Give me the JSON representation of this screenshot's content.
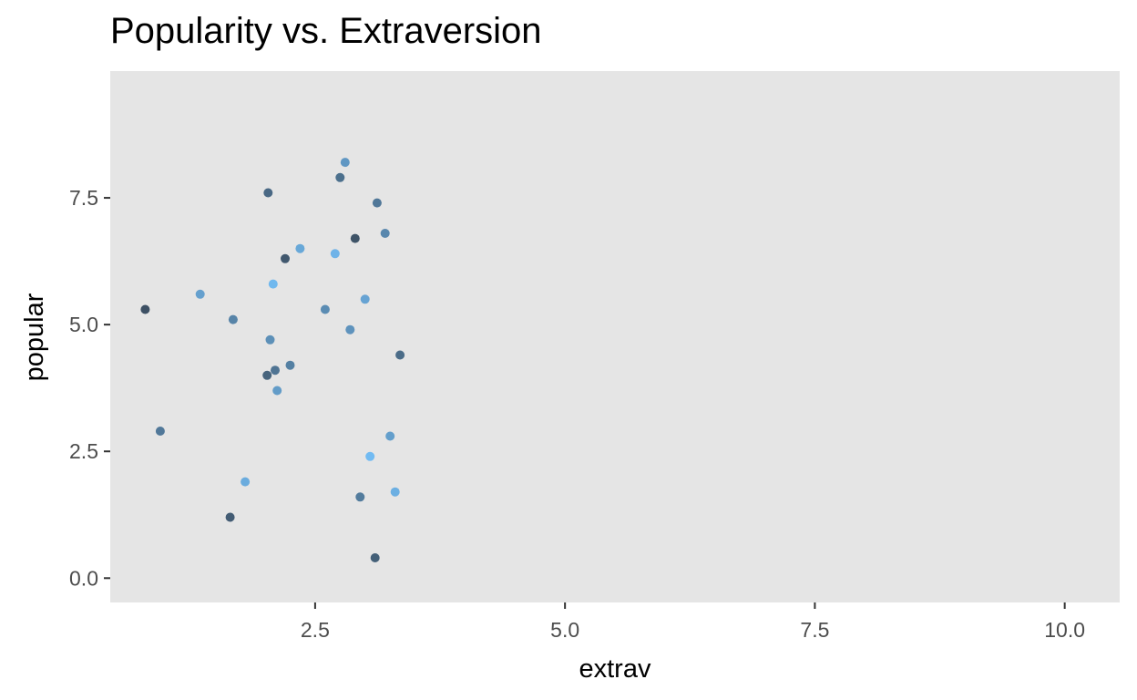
{
  "chart_data": {
    "type": "scatter",
    "title": "Popularity vs. Extraversion",
    "xlabel": "extrav",
    "ylabel": "popular",
    "xlim": [
      0.45,
      10.55
    ],
    "ylim": [
      -0.48,
      10.0
    ],
    "xticks": [
      2.5,
      5.0,
      7.5,
      10.0
    ],
    "xtick_labels": [
      "2.5",
      "5.0",
      "7.5",
      "10.0"
    ],
    "yticks": [
      0.0,
      2.5,
      5.0,
      7.5
    ],
    "ytick_labels": [
      "0.0",
      "2.5",
      "5.0",
      "7.5"
    ],
    "grid": false,
    "legend": "none",
    "colors": {
      "panel_background": "#e5e5e5",
      "point_dark": "#132b43",
      "point_light": "#56b1f7",
      "tick_mark": "#333333",
      "tick_label": "#4d4d4d"
    },
    "series": [
      {
        "x": [
          0.8,
          0.95,
          1.35,
          1.65,
          1.68,
          1.8,
          2.03,
          2.05,
          2.08,
          2.1,
          2.12,
          2.2,
          2.25,
          2.35,
          2.02,
          2.6,
          2.7,
          2.75,
          2.8,
          2.9,
          2.95,
          3.0,
          3.1,
          3.2,
          3.3,
          3.35,
          2.85,
          3.05,
          3.12,
          3.25
        ],
        "y": [
          5.3,
          2.9,
          5.6,
          1.2,
          5.1,
          1.9,
          7.6,
          4.7,
          5.8,
          4.1,
          3.7,
          6.3,
          4.2,
          6.5,
          4.0,
          5.3,
          6.4,
          7.9,
          8.2,
          6.7,
          1.6,
          5.5,
          0.4,
          6.8,
          1.7,
          4.4,
          4.9,
          2.4,
          7.4,
          2.8
        ]
      }
    ]
  }
}
